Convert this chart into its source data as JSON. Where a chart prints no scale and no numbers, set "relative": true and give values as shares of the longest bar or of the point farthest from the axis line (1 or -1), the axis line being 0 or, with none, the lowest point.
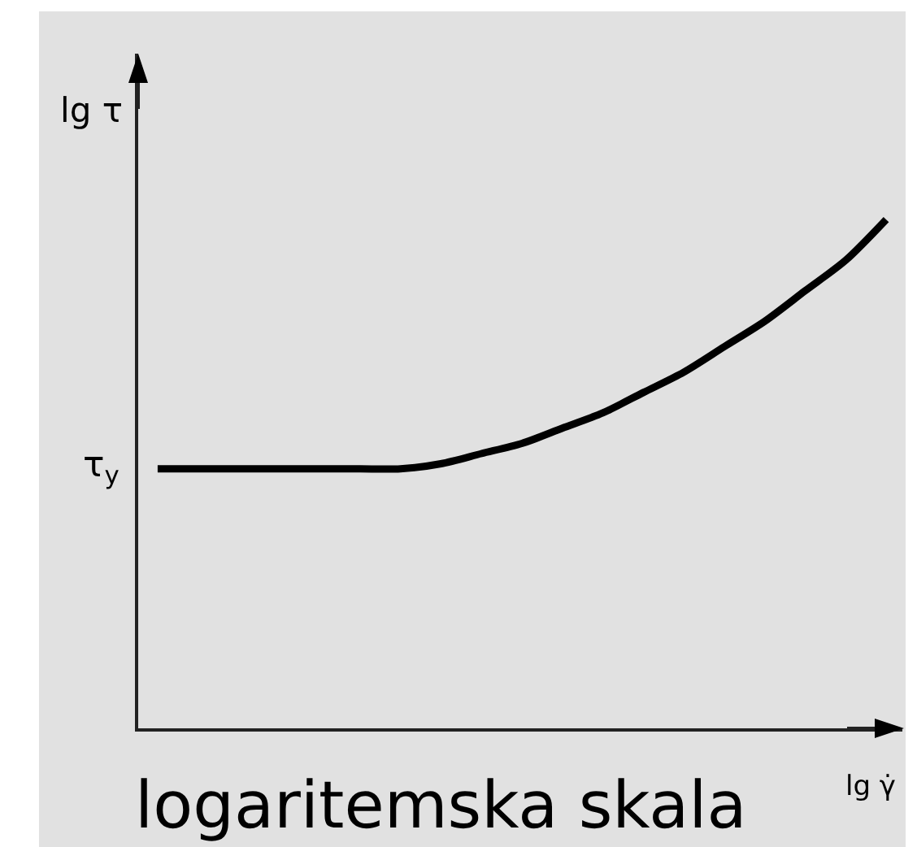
{
  "chart_data": {
    "type": "line",
    "relative": true,
    "xlabel": "lg γ̇",
    "ylabel": "lg τ",
    "categories": [
      null,
      null,
      null,
      null,
      null,
      null,
      null,
      null,
      null,
      null,
      null,
      null,
      null,
      null,
      null,
      null,
      null,
      null,
      null
    ],
    "series": [
      {
        "color": "#000000",
        "values": [
          0.51,
          0.51,
          0.51,
          0.51,
          0.51,
          0.51,
          0.51,
          0.52,
          0.54,
          0.56,
          0.59,
          0.62,
          0.66,
          0.7,
          0.75,
          0.8,
          0.86,
          0.92,
          1
        ]
      }
    ],
    "line_style": "solid",
    "annotations": [
      "τ$_{y}$",
      "logaritemska skala"
    ]
  }
}
